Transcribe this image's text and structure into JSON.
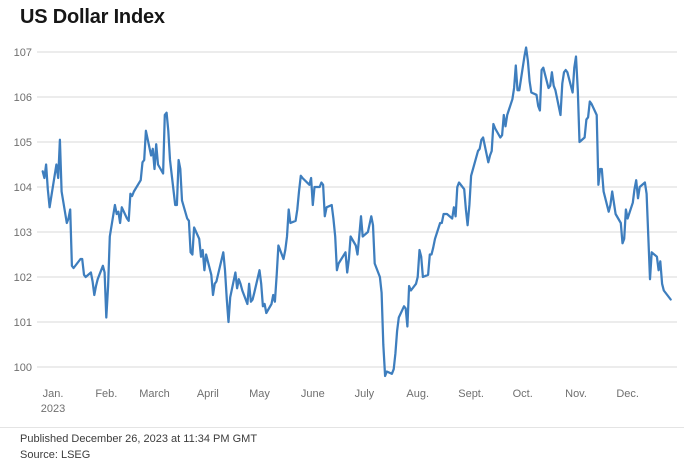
{
  "title": "US Dollar Index",
  "footer": {
    "published": "Published December 26, 2023 at 11:34 PM GMT",
    "source": "Source: LSEG"
  },
  "colors": {
    "line": "#3E7EBE",
    "grid": "#d9d9d9",
    "tick_label": "#6f6f6f",
    "title": "#161616",
    "footer_text": "#3c3c3c",
    "background": "#ffffff"
  },
  "chart_data": {
    "type": "line",
    "title": "US Dollar Index",
    "legend": "none",
    "grid": {
      "horizontal": true,
      "vertical": false,
      "color": "#d9d9d9"
    },
    "y_axis": {
      "ticks": [
        107,
        106,
        105,
        104,
        103,
        102,
        101,
        100
      ],
      "range": [
        99.6,
        107.25
      ],
      "side": "left"
    },
    "x_axis": {
      "unit": "days since 2023-01-01 (negative = late Dec 2022)",
      "range": [
        -8,
        365
      ],
      "ticks": [
        {
          "label": "Jan.",
          "sublabel": "2023",
          "day": 0
        },
        {
          "label": "Feb.",
          "day": 31
        },
        {
          "label": "March",
          "day": 59
        },
        {
          "label": "April",
          "day": 90
        },
        {
          "label": "May",
          "day": 120
        },
        {
          "label": "June",
          "day": 151
        },
        {
          "label": "July",
          "day": 181
        },
        {
          "label": "Aug.",
          "day": 212
        },
        {
          "label": "Sept.",
          "day": 243
        },
        {
          "label": "Oct.",
          "day": 273
        },
        {
          "label": "Nov.",
          "day": 304
        },
        {
          "label": "Dec.",
          "day": 334
        }
      ]
    },
    "series": [
      {
        "name": "US Dollar Index",
        "color": "#3E7EBE",
        "points": [
          [
            -6,
            104.35
          ],
          [
            -5,
            104.2
          ],
          [
            -4,
            104.5
          ],
          [
            -3,
            103.95
          ],
          [
            -2,
            103.55
          ],
          [
            2,
            104.5
          ],
          [
            3,
            104.2
          ],
          [
            4,
            105.05
          ],
          [
            5,
            103.9
          ],
          [
            8,
            103.2
          ],
          [
            9,
            103.3
          ],
          [
            10,
            103.5
          ],
          [
            11,
            102.25
          ],
          [
            12,
            102.2
          ],
          [
            16,
            102.4
          ],
          [
            17,
            102.4
          ],
          [
            18,
            102.05
          ],
          [
            19,
            102.0
          ],
          [
            22,
            102.1
          ],
          [
            23,
            101.9
          ],
          [
            24,
            101.6
          ],
          [
            25,
            101.8
          ],
          [
            26,
            101.95
          ],
          [
            29,
            102.25
          ],
          [
            30,
            102.1
          ],
          [
            31,
            101.1
          ],
          [
            32,
            101.8
          ],
          [
            33,
            102.9
          ],
          [
            36,
            103.6
          ],
          [
            37,
            103.4
          ],
          [
            38,
            103.45
          ],
          [
            39,
            103.2
          ],
          [
            40,
            103.55
          ],
          [
            43,
            103.3
          ],
          [
            44,
            103.25
          ],
          [
            45,
            103.85
          ],
          [
            46,
            103.8
          ],
          [
            47,
            103.9
          ],
          [
            51,
            104.15
          ],
          [
            52,
            104.55
          ],
          [
            53,
            104.6
          ],
          [
            54,
            105.25
          ],
          [
            57,
            104.7
          ],
          [
            58,
            104.85
          ],
          [
            59,
            104.4
          ],
          [
            60,
            104.95
          ],
          [
            61,
            104.5
          ],
          [
            64,
            104.3
          ],
          [
            65,
            105.6
          ],
          [
            66,
            105.65
          ],
          [
            67,
            105.25
          ],
          [
            68,
            104.6
          ],
          [
            71,
            103.6
          ],
          [
            72,
            103.6
          ],
          [
            73,
            104.6
          ],
          [
            74,
            104.4
          ],
          [
            75,
            103.7
          ],
          [
            78,
            103.3
          ],
          [
            79,
            103.25
          ],
          [
            80,
            102.55
          ],
          [
            81,
            102.5
          ],
          [
            82,
            103.1
          ],
          [
            85,
            102.85
          ],
          [
            86,
            102.45
          ],
          [
            87,
            102.6
          ],
          [
            88,
            102.15
          ],
          [
            89,
            102.5
          ],
          [
            92,
            102.05
          ],
          [
            93,
            101.6
          ],
          [
            94,
            101.85
          ],
          [
            95,
            101.9
          ],
          [
            99,
            102.55
          ],
          [
            100,
            102.15
          ],
          [
            101,
            101.5
          ],
          [
            102,
            101.0
          ],
          [
            103,
            101.55
          ],
          [
            106,
            102.1
          ],
          [
            107,
            101.75
          ],
          [
            108,
            101.95
          ],
          [
            109,
            101.85
          ],
          [
            110,
            101.7
          ],
          [
            113,
            101.4
          ],
          [
            114,
            101.85
          ],
          [
            115,
            101.45
          ],
          [
            116,
            101.5
          ],
          [
            117,
            101.65
          ],
          [
            120,
            102.15
          ],
          [
            121,
            101.85
          ],
          [
            122,
            101.35
          ],
          [
            123,
            101.4
          ],
          [
            124,
            101.2
          ],
          [
            127,
            101.4
          ],
          [
            128,
            101.6
          ],
          [
            129,
            101.45
          ],
          [
            130,
            102.05
          ],
          [
            131,
            102.7
          ],
          [
            134,
            102.4
          ],
          [
            135,
            102.6
          ],
          [
            136,
            102.9
          ],
          [
            137,
            103.5
          ],
          [
            138,
            103.2
          ],
          [
            141,
            103.25
          ],
          [
            142,
            103.5
          ],
          [
            143,
            103.9
          ],
          [
            144,
            104.25
          ],
          [
            145,
            104.2
          ],
          [
            149,
            104.05
          ],
          [
            150,
            104.2
          ],
          [
            151,
            103.6
          ],
          [
            152,
            104.0
          ],
          [
            155,
            104.0
          ],
          [
            156,
            104.1
          ],
          [
            157,
            104.05
          ],
          [
            158,
            103.35
          ],
          [
            159,
            103.55
          ],
          [
            162,
            103.6
          ],
          [
            163,
            103.3
          ],
          [
            164,
            102.9
          ],
          [
            165,
            102.15
          ],
          [
            166,
            102.3
          ],
          [
            170,
            102.55
          ],
          [
            171,
            102.1
          ],
          [
            172,
            102.4
          ],
          [
            173,
            102.9
          ],
          [
            176,
            102.7
          ],
          [
            177,
            102.5
          ],
          [
            178,
            102.9
          ],
          [
            179,
            103.35
          ],
          [
            180,
            102.9
          ],
          [
            183,
            103.0
          ],
          [
            185,
            103.35
          ],
          [
            186,
            103.15
          ],
          [
            187,
            102.3
          ],
          [
            190,
            102.0
          ],
          [
            191,
            101.65
          ],
          [
            192,
            100.5
          ],
          [
            193,
            99.8
          ],
          [
            194,
            99.9
          ],
          [
            197,
            99.85
          ],
          [
            198,
            99.95
          ],
          [
            199,
            100.3
          ],
          [
            200,
            100.8
          ],
          [
            201,
            101.1
          ],
          [
            204,
            101.35
          ],
          [
            205,
            101.3
          ],
          [
            206,
            100.9
          ],
          [
            207,
            101.8
          ],
          [
            208,
            101.7
          ],
          [
            211,
            101.85
          ],
          [
            212,
            102.0
          ],
          [
            213,
            102.6
          ],
          [
            214,
            102.45
          ],
          [
            215,
            102.0
          ],
          [
            218,
            102.05
          ],
          [
            219,
            102.5
          ],
          [
            220,
            102.5
          ],
          [
            221,
            102.65
          ],
          [
            222,
            102.85
          ],
          [
            225,
            103.2
          ],
          [
            226,
            103.2
          ],
          [
            227,
            103.4
          ],
          [
            228,
            103.4
          ],
          [
            229,
            103.4
          ],
          [
            232,
            103.3
          ],
          [
            233,
            103.55
          ],
          [
            234,
            103.35
          ],
          [
            235,
            104.0
          ],
          [
            236,
            104.1
          ],
          [
            239,
            103.95
          ],
          [
            240,
            103.5
          ],
          [
            241,
            103.15
          ],
          [
            242,
            103.6
          ],
          [
            243,
            104.25
          ],
          [
            247,
            104.8
          ],
          [
            248,
            104.85
          ],
          [
            249,
            105.05
          ],
          [
            250,
            105.1
          ],
          [
            253,
            104.55
          ],
          [
            254,
            104.7
          ],
          [
            255,
            104.8
          ],
          [
            256,
            105.4
          ],
          [
            257,
            105.3
          ],
          [
            260,
            105.1
          ],
          [
            261,
            105.15
          ],
          [
            262,
            105.6
          ],
          [
            263,
            105.35
          ],
          [
            264,
            105.6
          ],
          [
            267,
            105.95
          ],
          [
            268,
            106.2
          ],
          [
            269,
            106.7
          ],
          [
            270,
            106.15
          ],
          [
            271,
            106.15
          ],
          [
            274,
            106.9
          ],
          [
            275,
            107.1
          ],
          [
            276,
            106.8
          ],
          [
            277,
            106.35
          ],
          [
            278,
            106.1
          ],
          [
            281,
            106.05
          ],
          [
            282,
            105.8
          ],
          [
            283,
            105.7
          ],
          [
            284,
            106.6
          ],
          [
            285,
            106.65
          ],
          [
            288,
            106.2
          ],
          [
            289,
            106.25
          ],
          [
            290,
            106.55
          ],
          [
            291,
            106.25
          ],
          [
            292,
            106.15
          ],
          [
            295,
            105.6
          ],
          [
            296,
            106.3
          ],
          [
            297,
            106.55
          ],
          [
            298,
            106.6
          ],
          [
            299,
            106.55
          ],
          [
            302,
            106.1
          ],
          [
            303,
            106.65
          ],
          [
            304,
            106.9
          ],
          [
            305,
            106.15
          ],
          [
            306,
            105.0
          ],
          [
            309,
            105.1
          ],
          [
            310,
            105.5
          ],
          [
            311,
            105.55
          ],
          [
            312,
            105.9
          ],
          [
            313,
            105.85
          ],
          [
            316,
            105.6
          ],
          [
            317,
            104.05
          ],
          [
            318,
            104.4
          ],
          [
            319,
            104.4
          ],
          [
            320,
            103.9
          ],
          [
            323,
            103.45
          ],
          [
            324,
            103.6
          ],
          [
            325,
            103.9
          ],
          [
            327,
            103.4
          ],
          [
            330,
            103.2
          ],
          [
            331,
            102.75
          ],
          [
            332,
            102.85
          ],
          [
            333,
            103.5
          ],
          [
            334,
            103.3
          ],
          [
            337,
            103.65
          ],
          [
            338,
            103.95
          ],
          [
            339,
            104.15
          ],
          [
            340,
            103.75
          ],
          [
            341,
            104.0
          ],
          [
            344,
            104.1
          ],
          [
            345,
            103.85
          ],
          [
            346,
            102.9
          ],
          [
            347,
            101.95
          ],
          [
            348,
            102.55
          ],
          [
            351,
            102.45
          ],
          [
            352,
            102.15
          ],
          [
            353,
            102.35
          ],
          [
            354,
            101.85
          ],
          [
            355,
            101.7
          ],
          [
            359,
            101.5
          ]
        ]
      }
    ]
  }
}
